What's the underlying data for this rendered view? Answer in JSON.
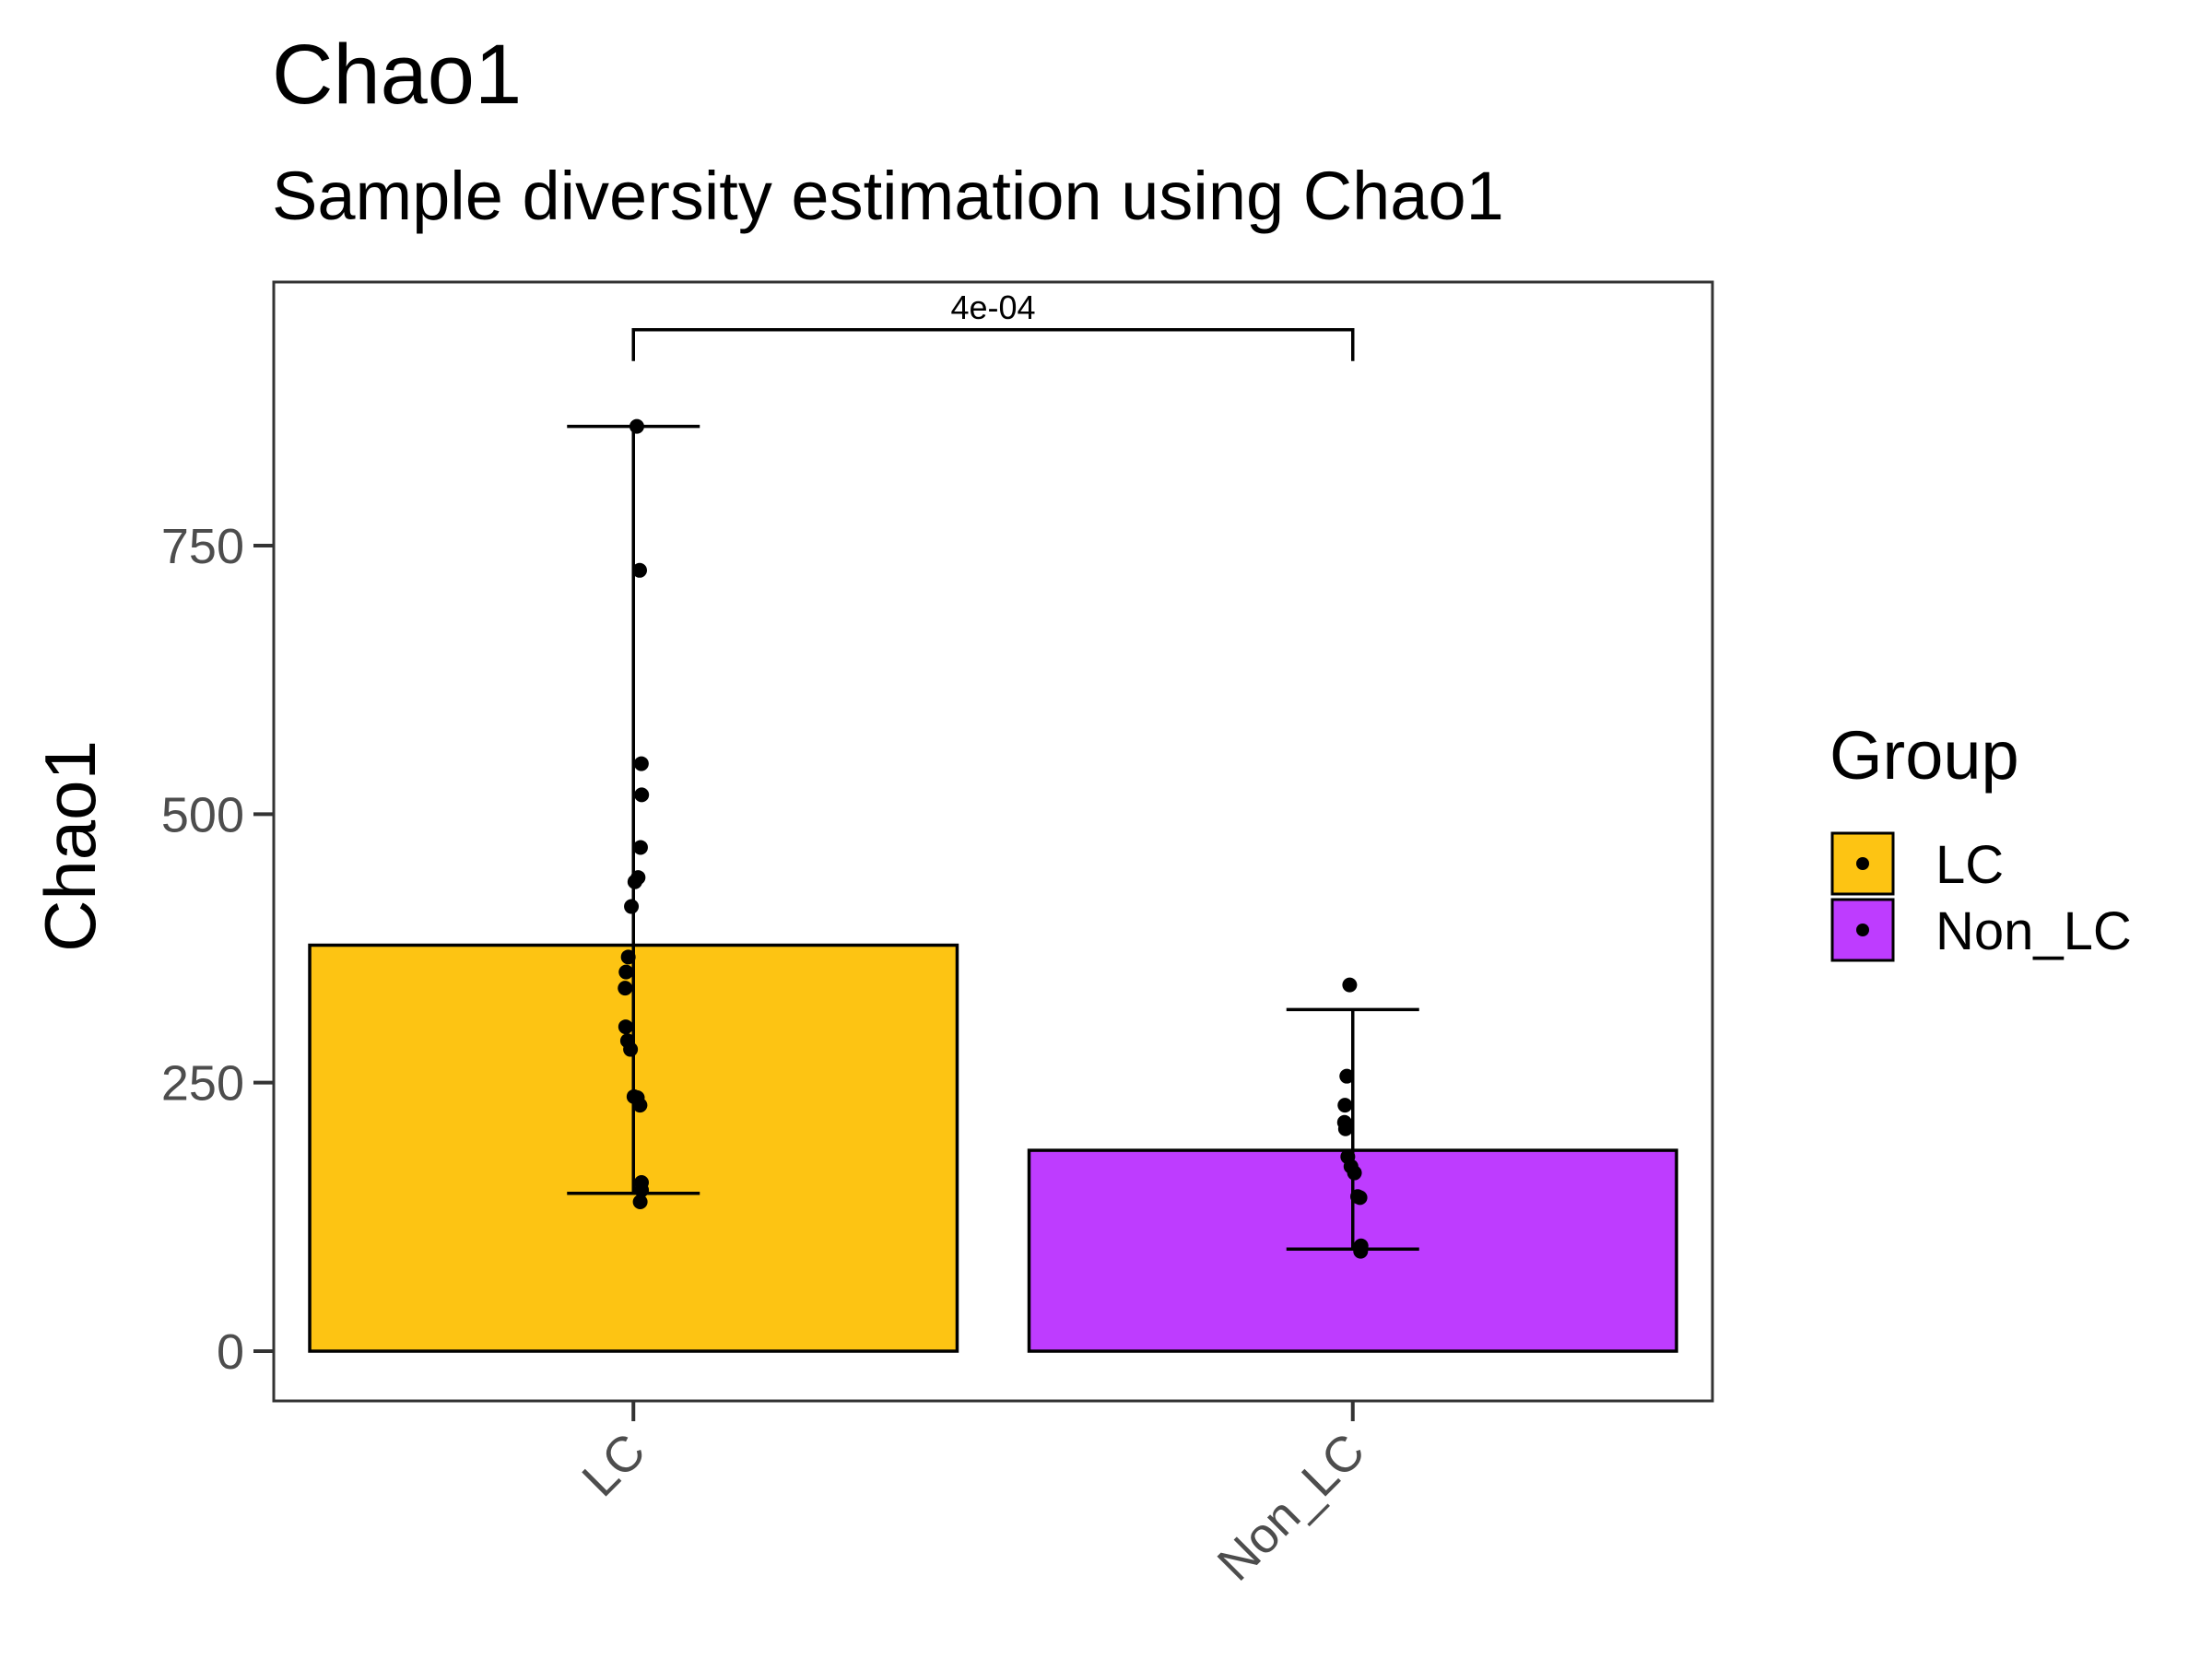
{
  "chart_data": {
    "type": "bar",
    "title": "Chao1",
    "subtitle": "Sample diversity estimation using Chao1",
    "xlabel": "",
    "ylabel": "Chao1",
    "ylim": [
      -45,
      1000
    ],
    "yticks": [
      0,
      250,
      500,
      750
    ],
    "ytick_labels": [
      "0",
      "250",
      "500",
      "750"
    ],
    "grid": false,
    "categories": [
      "LC",
      "Non_LC"
    ],
    "values": [
      378,
      187
    ],
    "error_bars": [
      {
        "low": 147,
        "high": 861
      },
      {
        "low": 95,
        "high": 318
      }
    ],
    "points": [
      [
        861,
        727,
        547,
        518,
        469,
        441,
        437,
        414,
        367,
        353,
        338,
        302,
        289,
        281,
        237,
        236,
        229,
        157,
        150,
        139
      ],
      [
        341,
        256,
        229,
        213,
        207,
        181,
        172,
        166,
        144,
        143,
        98,
        93
      ]
    ],
    "significance": {
      "label": "4e-04",
      "from": "LC",
      "to": "Non_LC",
      "y": 951
    },
    "legend": {
      "title": "Group",
      "position": "right",
      "entries": [
        {
          "label": "LC",
          "color": "#fdc413"
        },
        {
          "label": "Non_LC",
          "color": "#be3cff"
        }
      ]
    },
    "colors": {
      "LC": "#fdc413",
      "Non_LC": "#be3cff"
    }
  }
}
